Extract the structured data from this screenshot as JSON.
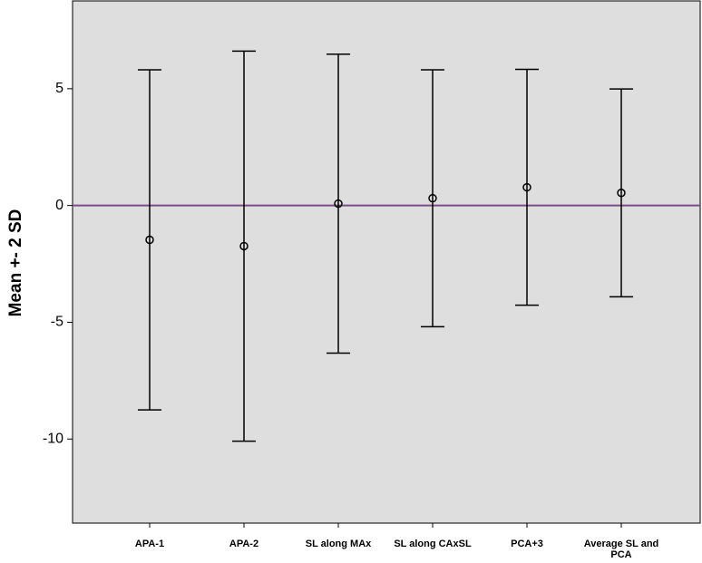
{
  "chart_data": {
    "type": "errorbar",
    "y_label": "Mean +- 2 SD",
    "categories": [
      "APA-1",
      "APA-2",
      "SL along MAx",
      "SL along CAxSL",
      "PCA+3",
      "Average SL and PCA"
    ],
    "values": [
      -1.47,
      -1.74,
      0.08,
      0.31,
      0.78,
      0.54
    ],
    "errors": [
      7.28,
      8.35,
      6.4,
      5.5,
      5.05,
      4.45
    ],
    "color": "#000000",
    "reference_line": 0,
    "reference_color": "#7b4c8c",
    "background": "#dedede",
    "ylim": [
      -13.6,
      8.76
    ],
    "yticks": [
      -10,
      -5,
      0,
      5
    ]
  }
}
